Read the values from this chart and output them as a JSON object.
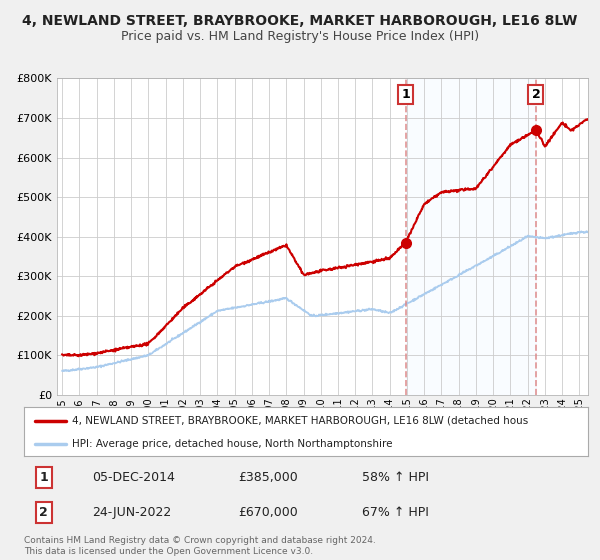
{
  "title": "4, NEWLAND STREET, BRAYBROOKE, MARKET HARBOROUGH, LE16 8LW",
  "subtitle": "Price paid vs. HM Land Registry's House Price Index (HPI)",
  "ylim": [
    0,
    800000
  ],
  "yticks": [
    0,
    100000,
    200000,
    300000,
    400000,
    500000,
    600000,
    700000,
    800000
  ],
  "ytick_labels": [
    "£0",
    "£100K",
    "£200K",
    "£300K",
    "£400K",
    "£500K",
    "£600K",
    "£700K",
    "£800K"
  ],
  "bg_color": "#f0f0f0",
  "plot_bg_color": "#ffffff",
  "grid_color": "#cccccc",
  "red_line_color": "#cc0000",
  "blue_line_color": "#aaccee",
  "dashed_line_color": "#dd8888",
  "shade_color": "#ddeeff",
  "sale1_year": 2014.92,
  "sale1_value": 385000,
  "sale2_year": 2022.48,
  "sale2_value": 670000,
  "legend_red_label": "4, NEWLAND STREET, BRAYBROOKE, MARKET HARBOROUGH, LE16 8LW (detached hous",
  "legend_blue_label": "HPI: Average price, detached house, North Northamptonshire",
  "sale1_date": "05-DEC-2014",
  "sale1_price": "£385,000",
  "sale1_pct": "58% ↑ HPI",
  "sale2_date": "24-JUN-2022",
  "sale2_price": "£670,000",
  "sale2_pct": "67% ↑ HPI",
  "footnote": "Contains HM Land Registry data © Crown copyright and database right 2024.\nThis data is licensed under the Open Government Licence v3.0."
}
